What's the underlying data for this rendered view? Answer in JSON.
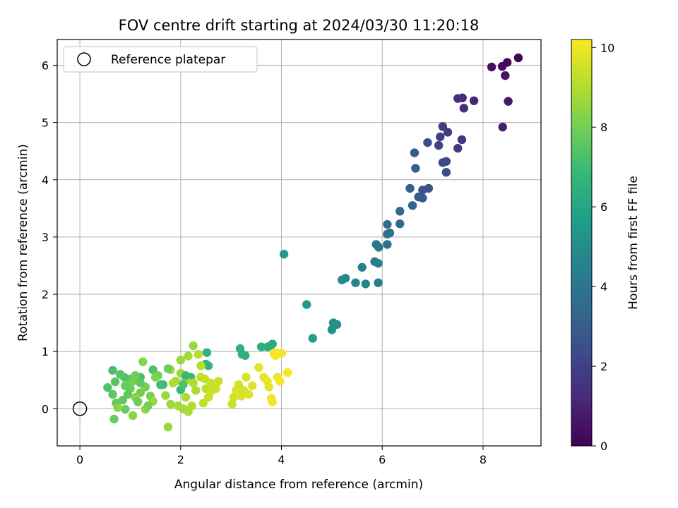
{
  "chart_data": {
    "type": "scatter",
    "title": "FOV centre drift starting at 2024/03/30 11:20:18",
    "xlabel": "Angular distance from reference (arcmin)",
    "ylabel": "Rotation from reference (arcmin)",
    "xlim": [
      -0.45,
      9.15
    ],
    "ylim": [
      -0.65,
      6.45
    ],
    "xticks": [
      0,
      2,
      4,
      6,
      8
    ],
    "yticks": [
      0,
      1,
      2,
      3,
      4,
      5,
      6
    ],
    "grid": true,
    "legend": {
      "placement": "top-left",
      "entries": [
        "Reference platepar"
      ]
    },
    "reference": {
      "x": 0,
      "y": 0,
      "marker": "open-circle"
    },
    "colorbar": {
      "label": "Hours from first FF file",
      "colormap": "viridis",
      "range": [
        0,
        10.2
      ],
      "ticks": [
        0,
        2,
        4,
        6,
        8,
        10
      ]
    },
    "points": [
      [
        8.7,
        6.13,
        0.1
      ],
      [
        8.48,
        6.05,
        0.2
      ],
      [
        8.38,
        5.98,
        0.3
      ],
      [
        8.17,
        5.97,
        0.4
      ],
      [
        8.44,
        5.82,
        0.5
      ],
      [
        8.5,
        5.37,
        0.6
      ],
      [
        8.39,
        4.92,
        0.8
      ],
      [
        7.82,
        5.38,
        1.1
      ],
      [
        7.59,
        5.43,
        1.2
      ],
      [
        7.5,
        5.42,
        1.3
      ],
      [
        7.62,
        5.25,
        1.4
      ],
      [
        7.58,
        4.7,
        1.6
      ],
      [
        7.5,
        4.55,
        1.7
      ],
      [
        7.3,
        4.83,
        1.8
      ],
      [
        7.2,
        4.93,
        1.9
      ],
      [
        7.15,
        4.75,
        2.0
      ],
      [
        7.12,
        4.6,
        2.1
      ],
      [
        7.2,
        4.3,
        2.2
      ],
      [
        7.27,
        4.32,
        2.3
      ],
      [
        7.27,
        4.13,
        2.4
      ],
      [
        6.9,
        4.65,
        2.5
      ],
      [
        6.92,
        3.85,
        2.6
      ],
      [
        6.8,
        3.82,
        2.7
      ],
      [
        6.72,
        3.7,
        2.8
      ],
      [
        6.8,
        3.68,
        2.9
      ],
      [
        6.64,
        4.47,
        3.0
      ],
      [
        6.66,
        4.2,
        3.1
      ],
      [
        6.55,
        3.85,
        3.2
      ],
      [
        6.6,
        3.55,
        3.3
      ],
      [
        6.35,
        3.45,
        3.4
      ],
      [
        6.35,
        3.23,
        3.5
      ],
      [
        6.1,
        3.22,
        3.6
      ],
      [
        6.15,
        3.07,
        3.7
      ],
      [
        6.1,
        3.05,
        3.8
      ],
      [
        6.1,
        2.87,
        3.9
      ],
      [
        5.88,
        2.87,
        4.0
      ],
      [
        5.93,
        2.82,
        4.1
      ],
      [
        5.85,
        2.57,
        4.2
      ],
      [
        5.92,
        2.54,
        4.3
      ],
      [
        5.92,
        2.2,
        4.4
      ],
      [
        5.6,
        2.47,
        4.5
      ],
      [
        5.67,
        2.18,
        4.6
      ],
      [
        5.47,
        2.2,
        4.7
      ],
      [
        5.27,
        2.28,
        4.8
      ],
      [
        5.2,
        2.25,
        4.9
      ],
      [
        5.03,
        1.5,
        5.0
      ],
      [
        5.1,
        1.47,
        5.1
      ],
      [
        5.0,
        1.38,
        5.2
      ],
      [
        4.05,
        2.7,
        5.5
      ],
      [
        4.5,
        1.82,
        5.6
      ],
      [
        4.62,
        1.23,
        5.7
      ],
      [
        3.82,
        1.13,
        6.2
      ],
      [
        3.72,
        1.08,
        6.3
      ],
      [
        3.78,
        1.1,
        6.3
      ],
      [
        3.6,
        1.08,
        6.4
      ],
      [
        3.18,
        1.05,
        6.5
      ],
      [
        3.22,
        0.95,
        6.5
      ],
      [
        3.28,
        0.93,
        6.5
      ],
      [
        2.52,
        0.98,
        6.6
      ],
      [
        2.5,
        0.78,
        6.7
      ],
      [
        2.55,
        0.75,
        6.7
      ],
      [
        2.2,
        0.55,
        6.8
      ],
      [
        2.0,
        0.33,
        6.9
      ],
      [
        1.65,
        0.42,
        7.0
      ],
      [
        1.45,
        0.68,
        7.3
      ],
      [
        1.2,
        0.55,
        7.2
      ],
      [
        1.0,
        0.52,
        7.4
      ],
      [
        0.88,
        0.55,
        7.3
      ],
      [
        0.65,
        0.67,
        7.2
      ],
      [
        0.55,
        0.37,
        7.4
      ],
      [
        0.7,
        0.47,
        7.5
      ],
      [
        0.8,
        0.6,
        7.5
      ],
      [
        0.65,
        0.25,
        7.6
      ],
      [
        0.72,
        0.1,
        7.7
      ],
      [
        0.68,
        -0.18,
        7.8
      ],
      [
        0.9,
        -0.01,
        7.8
      ],
      [
        1.0,
        0.35,
        7.9
      ],
      [
        1.1,
        0.58,
        7.9
      ],
      [
        1.05,
        0.48,
        8.0
      ],
      [
        1.2,
        0.28,
        8.0
      ],
      [
        1.3,
        0.38,
        8.1
      ],
      [
        1.4,
        0.22,
        8.1
      ],
      [
        1.5,
        0.55,
        8.2
      ],
      [
        1.25,
        0.82,
        8.3
      ],
      [
        1.1,
        0.2,
        8.3
      ],
      [
        1.05,
        -0.12,
        8.4
      ],
      [
        0.75,
        0.02,
        8.4
      ],
      [
        1.3,
        -0.01,
        8.5
      ],
      [
        1.45,
        0.13,
        8.5
      ],
      [
        1.7,
        0.23,
        8.6
      ],
      [
        1.75,
        -0.32,
        8.6
      ],
      [
        1.8,
        0.08,
        8.7
      ],
      [
        1.9,
        0.48,
        8.7
      ],
      [
        2.0,
        0.62,
        8.7
      ],
      [
        2.1,
        0.5,
        8.8
      ],
      [
        2.05,
        0.0,
        8.8
      ],
      [
        2.1,
        0.2,
        8.9
      ],
      [
        2.15,
        -0.05,
        8.9
      ],
      [
        2.22,
        0.05,
        9.0
      ],
      [
        2.25,
        0.45,
        9.0
      ],
      [
        2.0,
        0.85,
        8.7
      ],
      [
        2.15,
        0.92,
        8.8
      ],
      [
        2.25,
        1.1,
        8.6
      ],
      [
        1.8,
        0.68,
        8.8
      ],
      [
        1.85,
        0.45,
        8.9
      ],
      [
        2.4,
        0.75,
        9.1
      ],
      [
        2.35,
        0.95,
        9.1
      ],
      [
        2.4,
        0.55,
        9.2
      ],
      [
        2.5,
        0.35,
        9.2
      ],
      [
        2.55,
        0.2,
        9.3
      ],
      [
        2.6,
        0.45,
        9.3
      ],
      [
        2.7,
        0.35,
        9.4
      ],
      [
        2.75,
        0.48,
        9.4
      ],
      [
        3.02,
        0.08,
        9.4
      ],
      [
        3.05,
        0.2,
        9.5
      ],
      [
        3.15,
        0.42,
        9.5
      ],
      [
        3.2,
        0.22,
        9.6
      ],
      [
        3.25,
        0.32,
        9.6
      ],
      [
        3.3,
        0.55,
        9.6
      ],
      [
        3.35,
        0.25,
        9.7
      ],
      [
        3.55,
        0.72,
        9.8
      ],
      [
        3.65,
        0.55,
        9.8
      ],
      [
        3.75,
        0.38,
        9.8
      ],
      [
        3.72,
        0.48,
        9.9
      ],
      [
        3.8,
        0.18,
        9.9
      ],
      [
        3.82,
        0.12,
        10.0
      ],
      [
        3.85,
        0.97,
        10.0
      ],
      [
        3.88,
        0.93,
        10.0
      ],
      [
        3.92,
        0.55,
        10.0
      ],
      [
        3.97,
        0.48,
        10.1
      ],
      [
        4.0,
        0.97,
        10.1
      ],
      [
        4.12,
        0.63,
        10.1
      ],
      [
        3.9,
        0.98,
        10.1
      ],
      [
        0.85,
        0.15,
        7.6
      ],
      [
        0.95,
        0.25,
        7.7
      ],
      [
        1.15,
        0.12,
        7.9
      ],
      [
        1.35,
        0.05,
        8.0
      ],
      [
        1.55,
        0.58,
        8.1
      ],
      [
        1.6,
        0.42,
        7.1
      ],
      [
        1.2,
        0.45,
        7.6
      ],
      [
        0.9,
        0.4,
        7.8
      ],
      [
        2.1,
        0.58,
        6.9
      ],
      [
        2.05,
        0.42,
        7.3
      ],
      [
        1.75,
        0.7,
        7.9
      ],
      [
        2.3,
        0.32,
        8.9
      ],
      [
        2.45,
        0.1,
        9.2
      ],
      [
        2.48,
        0.52,
        9.3
      ],
      [
        1.95,
        0.05,
        8.8
      ],
      [
        2.6,
        0.3,
        9.4
      ],
      [
        3.1,
        0.32,
        9.6
      ],
      [
        3.42,
        0.4,
        9.7
      ]
    ]
  }
}
